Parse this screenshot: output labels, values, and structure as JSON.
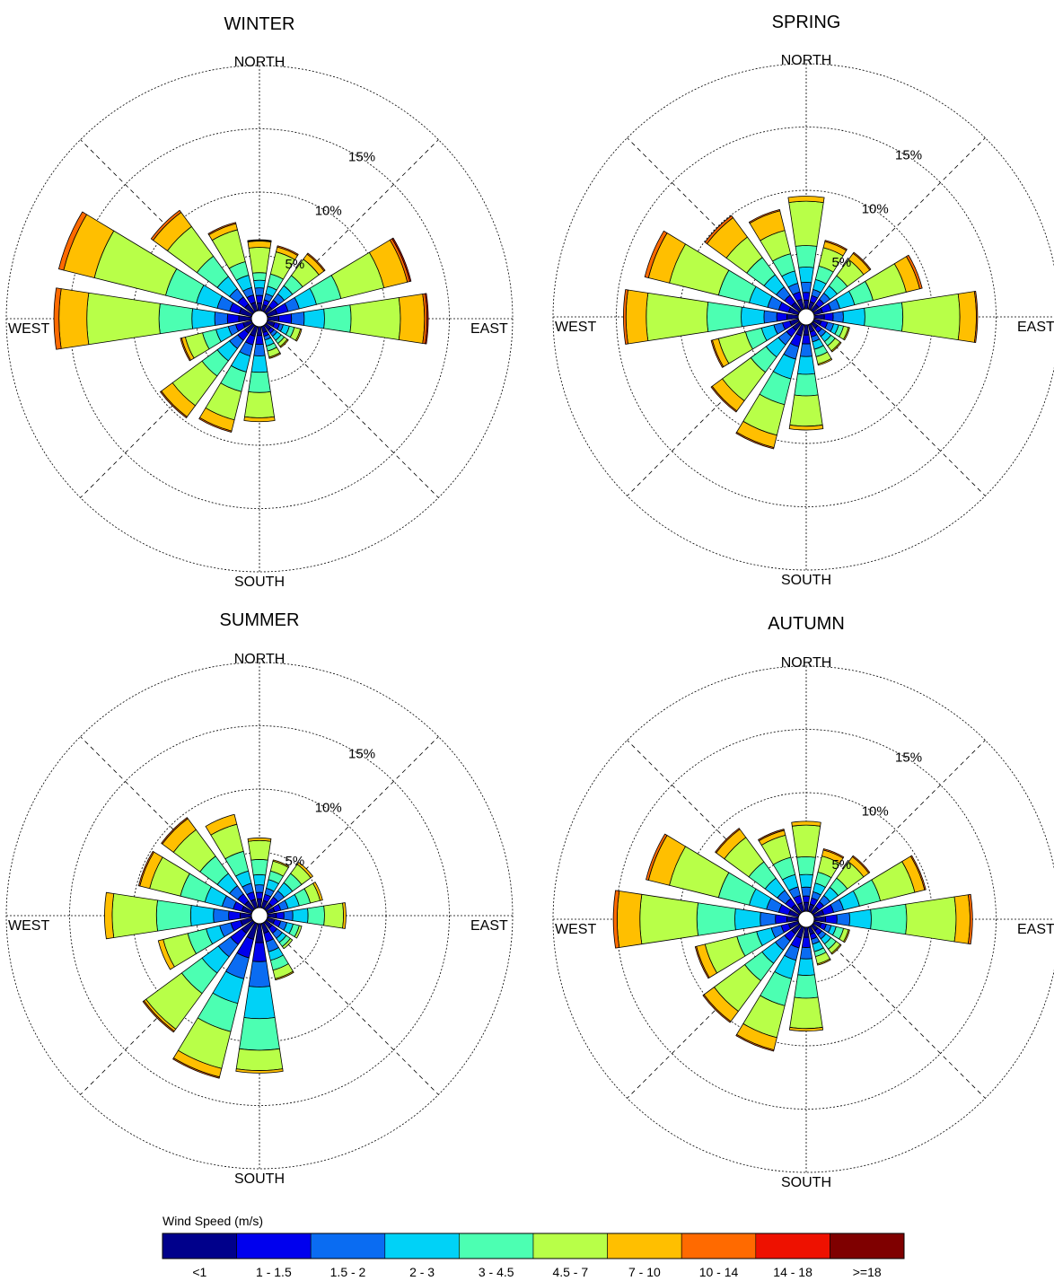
{
  "chart_data": {
    "type": "windrose",
    "legend": {
      "title": "Wind Speed (m/s)",
      "bins": [
        {
          "label": "<1",
          "color": "#00008b"
        },
        {
          "label": "1 - 1.5",
          "color": "#0000ee"
        },
        {
          "label": "1.5 - 2",
          "color": "#0a6cf2"
        },
        {
          "label": "2 - 3",
          "color": "#00d2f7"
        },
        {
          "label": "3 - 4.5",
          "color": "#4cffb2"
        },
        {
          "label": "4.5 - 7",
          "color": "#b8ff48"
        },
        {
          "label": "7 - 10",
          "color": "#ffbf00"
        },
        {
          "label": "10 - 14",
          "color": "#ff6a00"
        },
        {
          "label": "14 - 18",
          "color": "#ee1100"
        },
        {
          "label": ">=18",
          "color": "#7f0000"
        }
      ]
    },
    "ring_labels": [
      "5%",
      "10%",
      "15%"
    ],
    "rings": [
      5,
      10,
      15,
      20
    ],
    "direction_labels": {
      "north": "NORTH",
      "south": "SOUTH",
      "east": "EAST",
      "west": "WEST"
    },
    "panels": [
      {
        "title": "WINTER",
        "sectors": [
          {
            "dir": 0,
            "cum": [
              0.6,
              1.2,
              1.8,
              2.4,
              3.0,
              5.0,
              5.5,
              5.55,
              5.6,
              5.6
            ]
          },
          {
            "dir": 22.5,
            "cum": [
              0.5,
              0.9,
              1.4,
              2.0,
              3.0,
              4.8,
              5.2,
              5.3,
              5.3,
              5.3
            ]
          },
          {
            "dir": 45,
            "cum": [
              0.6,
              1.2,
              1.8,
              2.6,
              3.6,
              5.2,
              5.7,
              5.8,
              5.8,
              5.8
            ]
          },
          {
            "dir": 67.5,
            "cum": [
              0.8,
              1.7,
              2.6,
              4.0,
              6.0,
              9.5,
              11.4,
              11.6,
              11.7,
              11.7
            ]
          },
          {
            "dir": 90,
            "cum": [
              0.9,
              1.9,
              2.9,
              4.5,
              6.6,
              10.5,
              12.4,
              12.6,
              12.7,
              12.7
            ]
          },
          {
            "dir": 112.5,
            "cum": [
              0.6,
              1.0,
              1.3,
              1.8,
              2.2,
              2.7,
              2.8,
              2.8,
              2.8,
              2.8
            ]
          },
          {
            "dir": 135,
            "cum": [
              0.5,
              0.8,
              1.1,
              1.5,
              1.8,
              2.1,
              2.2,
              2.2,
              2.2,
              2.2
            ]
          },
          {
            "dir": 157.5,
            "cum": [
              0.5,
              0.8,
              1.1,
              1.6,
              2.0,
              2.5,
              2.6,
              2.6,
              2.6,
              2.6
            ]
          },
          {
            "dir": 180,
            "cum": [
              0.7,
              1.4,
              2.3,
              3.6,
              5.2,
              7.2,
              7.5,
              7.5,
              7.5,
              7.5
            ]
          },
          {
            "dir": 202.5,
            "cum": [
              0.8,
              1.5,
              2.4,
              3.7,
              5.3,
              7.6,
              8.5,
              8.6,
              8.6,
              8.6
            ]
          },
          {
            "dir": 225,
            "cum": [
              0.8,
              1.5,
              2.3,
              3.5,
              5.0,
              7.9,
              9.0,
              9.1,
              9.1,
              9.1
            ]
          },
          {
            "dir": 247.5,
            "cum": [
              0.7,
              1.3,
              1.9,
              2.9,
              4.0,
              5.4,
              5.7,
              5.8,
              5.8,
              5.8
            ]
          },
          {
            "dir": 270,
            "cum": [
              1.0,
              1.9,
              2.9,
              4.7,
              7.3,
              13.0,
              15.2,
              15.6,
              15.6,
              15.6
            ]
          },
          {
            "dir": 292.5,
            "cum": [
              1.0,
              1.8,
              2.8,
              4.5,
              7.0,
              12.8,
              15.3,
              15.7,
              15.7,
              15.7
            ]
          },
          {
            "dir": 315,
            "cum": [
              0.8,
              1.5,
              2.3,
              3.5,
              5.5,
              8.4,
              9.8,
              10.0,
              10.0,
              10.0
            ]
          },
          {
            "dir": 337.5,
            "cum": [
              0.7,
              1.3,
              1.9,
              2.9,
              4.0,
              6.6,
              7.1,
              7.2,
              7.2,
              7.2
            ]
          }
        ]
      },
      {
        "title": "SPRING",
        "sectors": [
          {
            "dir": 0,
            "cum": [
              0.7,
              1.3,
              2.1,
              3.3,
              5.0,
              8.5,
              8.9,
              8.9,
              8.9,
              8.9
            ]
          },
          {
            "dir": 22.5,
            "cum": [
              0.6,
              1.1,
              1.6,
              2.4,
              3.5,
              5.0,
              5.5,
              5.6,
              5.6,
              5.6
            ]
          },
          {
            "dir": 45,
            "cum": [
              0.6,
              1.1,
              1.7,
              2.4,
              3.4,
              5.0,
              5.6,
              5.7,
              5.7,
              5.7
            ]
          },
          {
            "dir": 67.5,
            "cum": [
              0.7,
              1.4,
              2.1,
              3.3,
              4.8,
              7.5,
              8.6,
              8.8,
              8.8,
              8.8
            ]
          },
          {
            "dir": 90,
            "cum": [
              0.8,
              1.5,
              2.3,
              4.0,
              7.0,
              11.5,
              12.8,
              12.9,
              12.9,
              12.9
            ]
          },
          {
            "dir": 112.5,
            "cum": [
              0.6,
              1.1,
              1.6,
              2.0,
              2.4,
              2.8,
              2.9,
              2.9,
              2.9,
              2.9
            ]
          },
          {
            "dir": 135,
            "cum": [
              0.5,
              0.9,
              1.3,
              1.8,
              2.2,
              2.7,
              2.8,
              2.8,
              2.8,
              2.8
            ]
          },
          {
            "dir": 157.5,
            "cum": [
              0.6,
              1.0,
              1.4,
              2.0,
              2.6,
              3.2,
              3.3,
              3.3,
              3.3,
              3.3
            ]
          },
          {
            "dir": 180,
            "cum": [
              0.8,
              1.5,
              2.5,
              3.9,
              5.6,
              8.0,
              8.3,
              8.3,
              8.3,
              8.3
            ]
          },
          {
            "dir": 202.5,
            "cum": [
              0.9,
              1.8,
              2.8,
              4.4,
              6.5,
              9.0,
              10.0,
              10.1,
              10.1,
              10.1
            ]
          },
          {
            "dir": 225,
            "cum": [
              0.7,
              1.3,
              2.1,
              3.3,
              4.8,
              7.6,
              8.6,
              8.7,
              8.7,
              8.7
            ]
          },
          {
            "dir": 247.5,
            "cum": [
              0.7,
              1.3,
              2.0,
              3.0,
              4.3,
              6.5,
              7.0,
              7.1,
              7.1,
              7.1
            ]
          },
          {
            "dir": 270,
            "cum": [
              0.9,
              1.7,
              2.7,
              4.5,
              7.2,
              12.0,
              13.6,
              13.8,
              13.8,
              13.8
            ]
          },
          {
            "dir": 292.5,
            "cum": [
              0.8,
              1.6,
              2.5,
              4.0,
              6.5,
              10.5,
              12.2,
              12.5,
              12.5,
              12.5
            ]
          },
          {
            "dir": 315,
            "cum": [
              0.8,
              1.5,
              2.3,
              3.5,
              5.2,
              7.2,
              9.1,
              9.3,
              9.3,
              9.3
            ]
          },
          {
            "dir": 337.5,
            "cum": [
              0.8,
              1.4,
              2.1,
              3.1,
              4.5,
              6.4,
              8.0,
              8.1,
              8.1,
              8.1
            ]
          }
        ]
      },
      {
        "title": "SUMMER",
        "sectors": [
          {
            "dir": 0,
            "cum": [
              0.7,
              1.2,
              1.8,
              2.6,
              3.8,
              5.3,
              5.5,
              5.5,
              5.5,
              5.5
            ]
          },
          {
            "dir": 22.5,
            "cum": [
              0.6,
              1.1,
              1.6,
              2.3,
              3.0,
              3.8,
              3.9,
              3.9,
              3.9,
              3.9
            ]
          },
          {
            "dir": 45,
            "cum": [
              0.6,
              1.2,
              1.8,
              2.6,
              3.5,
              4.4,
              4.6,
              4.6,
              4.6,
              4.6
            ]
          },
          {
            "dir": 67.5,
            "cum": [
              0.6,
              1.1,
              1.7,
              2.6,
              3.5,
              4.3,
              4.5,
              4.5,
              4.5,
              4.5
            ]
          },
          {
            "dir": 90,
            "cum": [
              0.7,
              1.3,
              2.0,
              3.2,
              4.5,
              6.0,
              6.2,
              6.2,
              6.2,
              6.2
            ]
          },
          {
            "dir": 112.5,
            "cum": [
              0.6,
              1.1,
              1.6,
              2.1,
              2.6,
              2.8,
              2.8,
              2.8,
              2.8,
              2.8
            ]
          },
          {
            "dir": 135,
            "cum": [
              0.6,
              1.1,
              1.6,
              2.0,
              2.4,
              2.6,
              2.6,
              2.6,
              2.6,
              2.6
            ]
          },
          {
            "dir": 157.5,
            "cum": [
              0.8,
              1.5,
              2.3,
              3.0,
              3.8,
              4.5,
              4.6,
              4.6,
              4.6,
              4.6
            ]
          },
          {
            "dir": 180,
            "cum": [
              1.5,
              3.0,
              5.0,
              7.5,
              10.0,
              11.6,
              11.8,
              11.8,
              11.8,
              11.8
            ]
          },
          {
            "dir": 202.5,
            "cum": [
              1.3,
              2.8,
              4.5,
              6.5,
              8.8,
              11.8,
              12.5,
              12.6,
              12.6,
              12.6
            ]
          },
          {
            "dir": 225,
            "cum": [
              1.1,
              2.2,
              3.4,
              5.0,
              7.0,
              10.5,
              10.7,
              10.8,
              10.8,
              10.8
            ]
          },
          {
            "dir": 247.5,
            "cum": [
              0.9,
              1.7,
              2.6,
              3.7,
              5.2,
              7.2,
              7.6,
              7.6,
              7.6,
              7.6
            ]
          },
          {
            "dir": 270,
            "cum": [
              0.9,
              1.8,
              3.0,
              4.8,
              7.5,
              11.0,
              11.6,
              11.6,
              11.6,
              11.6
            ]
          },
          {
            "dir": 292.5,
            "cum": [
              0.8,
              1.5,
              2.4,
              3.8,
              5.8,
              8.3,
              9.1,
              9.2,
              9.2,
              9.2
            ]
          },
          {
            "dir": 315,
            "cum": [
              0.8,
              1.5,
              2.3,
              3.5,
              5.2,
              7.8,
              8.9,
              9.0,
              9.0,
              9.0
            ]
          },
          {
            "dir": 337.5,
            "cum": [
              0.7,
              1.3,
              2.0,
              3.0,
              4.6,
              6.8,
              7.6,
              7.6,
              7.6,
              7.6
            ]
          }
        ]
      },
      {
        "title": "AUTUMN",
        "sectors": [
          {
            "dir": 0,
            "cum": [
              0.7,
              1.2,
              1.9,
              2.9,
              4.3,
              6.8,
              7.1,
              7.1,
              7.1,
              7.1
            ]
          },
          {
            "dir": 22.5,
            "cum": [
              0.6,
              1.1,
              1.6,
              2.3,
              3.2,
              4.5,
              5.0,
              5.1,
              5.1,
              5.1
            ]
          },
          {
            "dir": 45,
            "cum": [
              0.6,
              1.1,
              1.7,
              2.5,
              3.4,
              5.0,
              5.5,
              5.6,
              5.6,
              5.6
            ]
          },
          {
            "dir": 67.5,
            "cum": [
              0.8,
              1.6,
              2.4,
              3.7,
              5.4,
              8.2,
              9.0,
              9.1,
              9.1,
              9.1
            ]
          },
          {
            "dir": 90,
            "cum": [
              0.9,
              1.8,
              2.8,
              4.5,
              7.3,
              11.2,
              12.3,
              12.5,
              12.5,
              12.5
            ]
          },
          {
            "dir": 112.5,
            "cum": [
              0.6,
              1.0,
              1.4,
              1.8,
              2.4,
              2.8,
              2.9,
              2.9,
              2.9,
              2.9
            ]
          },
          {
            "dir": 135,
            "cum": [
              0.5,
              0.9,
              1.3,
              1.8,
              2.3,
              2.7,
              2.8,
              2.8,
              2.8,
              2.8
            ]
          },
          {
            "dir": 157.5,
            "cum": [
              0.6,
              1.0,
              1.4,
              2.0,
              2.4,
              3.0,
              3.1,
              3.1,
              3.1,
              3.1
            ]
          },
          {
            "dir": 180,
            "cum": [
              0.8,
              1.6,
              2.5,
              3.8,
              5.6,
              8.0,
              8.2,
              8.2,
              8.2,
              8.2
            ]
          },
          {
            "dir": 202.5,
            "cum": [
              0.9,
              1.7,
              2.7,
              4.2,
              6.4,
              9.0,
              10.0,
              10.1,
              10.1,
              10.1
            ]
          },
          {
            "dir": 225,
            "cum": [
              0.8,
              1.5,
              2.4,
              3.7,
              5.4,
              8.4,
              9.4,
              9.5,
              9.5,
              9.5
            ]
          },
          {
            "dir": 247.5,
            "cum": [
              0.8,
              1.4,
              2.2,
              3.4,
              5.0,
              7.6,
              8.3,
              8.4,
              8.4,
              8.4
            ]
          },
          {
            "dir": 270,
            "cum": [
              0.9,
              1.8,
              3.0,
              5.0,
              8.0,
              12.5,
              14.3,
              14.6,
              14.6,
              14.6
            ]
          },
          {
            "dir": 292.5,
            "cum": [
              0.8,
              1.6,
              2.6,
              4.0,
              6.5,
              10.5,
              12.2,
              12.4,
              12.4,
              12.4
            ]
          },
          {
            "dir": 315,
            "cum": [
              0.8,
              1.4,
              2.2,
              3.4,
              5.0,
              7.4,
              8.2,
              8.3,
              8.3,
              8.3
            ]
          },
          {
            "dir": 337.5,
            "cum": [
              0.7,
              1.3,
              2.0,
              3.0,
              4.4,
              6.2,
              6.6,
              6.7,
              6.7,
              6.7
            ]
          }
        ]
      }
    ]
  }
}
